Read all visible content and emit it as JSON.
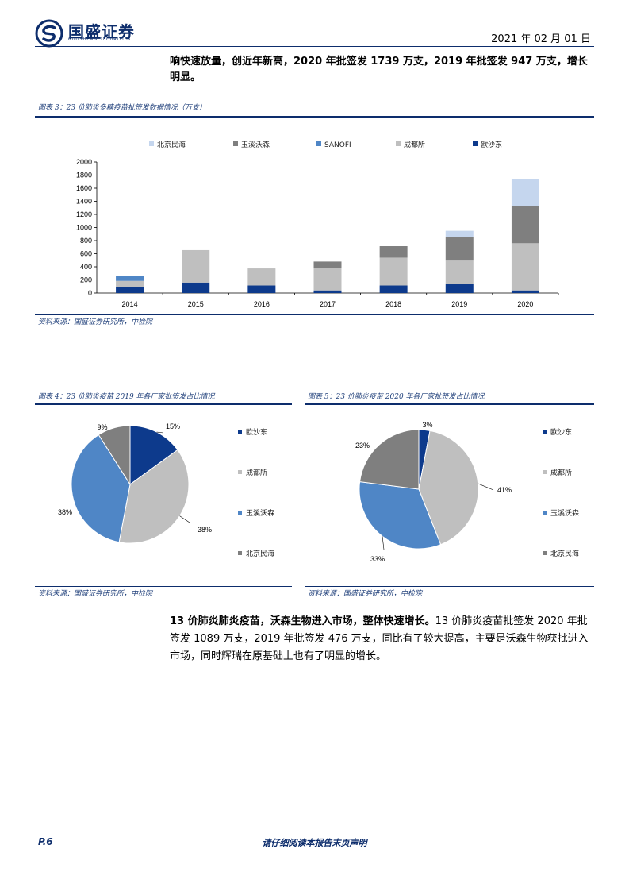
{
  "header": {
    "brand_name": "国盛证券",
    "brand_sub": "GUOSHENG SECURITIES",
    "date": "2021 年 02 月 01 日"
  },
  "intro": {
    "text": "响快速放量，创近年新高，2020 年批签发 1739 万支，2019 年批签发 947 万支，增长明显。"
  },
  "fig3": {
    "title": "图表 3：23 价肺炎多糖疫苗批签发数据情况（万支）",
    "source": "资料来源：国盛证券研究所，中检院"
  },
  "fig4": {
    "title": "图表 4：23 价肺炎疫苗 2019 年各厂家批签发占比情况",
    "source": "资料来源：国盛证券研究所，中检院"
  },
  "fig5": {
    "title": "图表 5：23 价肺炎疫苗 2020 年各厂家批签发占比情况",
    "source": "资料来源：国盛证券研究所，中检院"
  },
  "body": {
    "bold_lead": "13 价肺炎肺炎疫苗，沃森生物进入市场，整体快速增长。",
    "rest": "13 价肺炎疫苗批签发 2020 年批签发 1089 万支，2019 年批签发 476 万支，同比有了较大提高，主要是沃森生物获批进入市场，同时辉瑞在原基础上也有了明显的增长。"
  },
  "footer": {
    "page": "P.6",
    "notice": "请仔细阅读本报告末页声明"
  },
  "colors": {
    "brand": "#0d2d6c",
    "minhai": "#c5d6ee",
    "yuxi": "#7f7f7f",
    "sanofi": "#4f86c6",
    "chengdu": "#bfbfbf",
    "ouyi": "#0d3a8c"
  },
  "chart_data": [
    {
      "type": "bar",
      "stacked": true,
      "categories": [
        "2014",
        "2015",
        "2016",
        "2017",
        "2018",
        "2019",
        "2020"
      ],
      "series": [
        {
          "name": "欧沙东",
          "color": "#0d3a8c",
          "values": [
            95,
            160,
            115,
            40,
            115,
            140,
            40
          ]
        },
        {
          "name": "成都所",
          "color": "#bfbfbf",
          "values": [
            90,
            495,
            260,
            345,
            425,
            355,
            720
          ]
        },
        {
          "name": "SANOFI",
          "color": "#4f86c6",
          "values": [
            75,
            0,
            0,
            0,
            0,
            0,
            0
          ]
        },
        {
          "name": "玉溪沃森",
          "color": "#7f7f7f",
          "values": [
            0,
            0,
            0,
            95,
            175,
            360,
            570
          ]
        },
        {
          "name": "北京民海",
          "color": "#c5d6ee",
          "values": [
            0,
            0,
            0,
            0,
            0,
            95,
            410
          ]
        }
      ],
      "legend_order": [
        "北京民海",
        "玉溪沃森",
        "SANOFI",
        "成都所",
        "欧沙东"
      ],
      "yticks": [
        0,
        200,
        400,
        600,
        800,
        1000,
        1200,
        1400,
        1600,
        1800,
        2000
      ],
      "ylim": [
        0,
        2000
      ],
      "legend": "top"
    },
    {
      "type": "pie",
      "labels": [
        "欧沙东",
        "成都所",
        "玉溪沃森",
        "北京民海"
      ],
      "values": [
        15,
        38,
        38,
        9
      ],
      "display": [
        "15%",
        "38%",
        "38%",
        "9%"
      ],
      "colors": [
        "#0d3a8c",
        "#bfbfbf",
        "#4f86c6",
        "#7f7f7f"
      ],
      "legend": "right"
    },
    {
      "type": "pie",
      "labels": [
        "欧沙东",
        "成都所",
        "玉溪沃森",
        "北京民海"
      ],
      "values": [
        3,
        41,
        33,
        23
      ],
      "display": [
        "3%",
        "41%",
        "33%",
        "23%"
      ],
      "colors": [
        "#0d3a8c",
        "#bfbfbf",
        "#4f86c6",
        "#7f7f7f"
      ],
      "legend": "right"
    }
  ]
}
